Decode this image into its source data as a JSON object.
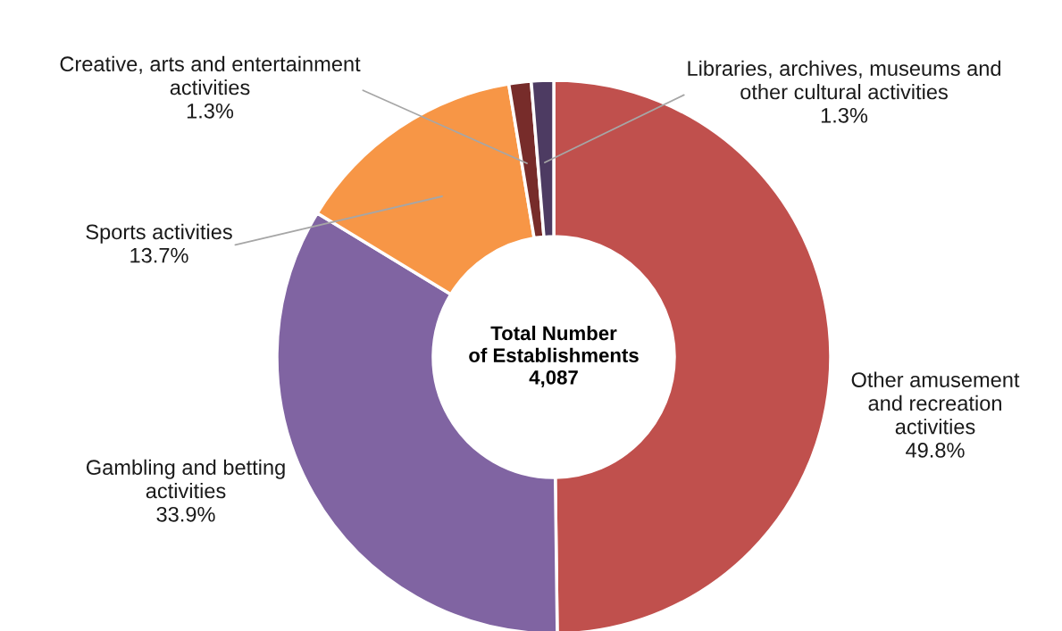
{
  "chart_data": {
    "type": "donut",
    "categories": [
      "Other amusement\nand recreation\nactivities",
      "Gambling and betting\nactivities",
      "Sports activities",
      "Creative, arts and entertainment\nactivities",
      "Libraries, archives, museums and\nother cultural activities"
    ],
    "values": [
      49.8,
      33.9,
      13.7,
      1.3,
      1.3
    ],
    "colors": [
      "#c0504d",
      "#8064a2",
      "#f79646",
      "#772c2a",
      "#4d3b62"
    ],
    "value_labels": [
      "49.8%",
      "33.9%",
      "13.7%",
      "1.3%",
      "1.3%"
    ],
    "annotations": [
      "Total Number\nof Establishments\n4,087"
    ]
  }
}
